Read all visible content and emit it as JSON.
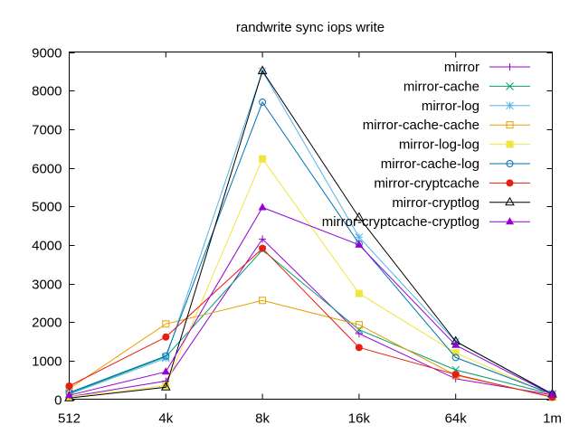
{
  "chart_data": {
    "type": "line",
    "title": "randwrite sync iops write",
    "xlabel": "",
    "ylabel": "",
    "categories": [
      "512",
      "4k",
      "8k",
      "16k",
      "64k",
      "1m"
    ],
    "ylim": [
      0,
      9000
    ],
    "yticks": [
      0,
      1000,
      2000,
      3000,
      4000,
      5000,
      6000,
      7000,
      8000,
      9000
    ],
    "grid": false,
    "legend_position": "top-right",
    "series": [
      {
        "name": "mirror",
        "color": "#9400d3",
        "marker": "plus",
        "values": [
          60,
          470,
          4150,
          1700,
          530,
          110
        ]
      },
      {
        "name": "mirror-cache",
        "color": "#009e73",
        "marker": "cross",
        "values": [
          150,
          1100,
          3870,
          1800,
          760,
          130
        ]
      },
      {
        "name": "mirror-log",
        "color": "#56b4e9",
        "marker": "star",
        "values": [
          130,
          1060,
          8500,
          4200,
          1490,
          140
        ]
      },
      {
        "name": "mirror-cache-cache",
        "color": "#e69f00",
        "marker": "square-open",
        "values": [
          270,
          1950,
          2560,
          1930,
          620,
          60
        ]
      },
      {
        "name": "mirror-log-log",
        "color": "#f0e442",
        "marker": "square-filled",
        "values": [
          60,
          350,
          6230,
          2740,
          1200,
          100
        ]
      },
      {
        "name": "mirror-cache-log",
        "color": "#0072b2",
        "marker": "circle-open",
        "values": [
          170,
          1120,
          7700,
          4030,
          1080,
          130
        ]
      },
      {
        "name": "mirror-cryptcache",
        "color": "#e51e10",
        "marker": "circle-filled",
        "values": [
          340,
          1610,
          3910,
          1340,
          640,
          50
        ]
      },
      {
        "name": "mirror-cryptlog",
        "color": "#000000",
        "marker": "triangle-open",
        "values": [
          30,
          310,
          8510,
          4710,
          1500,
          130
        ]
      },
      {
        "name": "mirror-cryptcache-cryptlog",
        "color": "#9400d3",
        "marker": "triangle-filled",
        "values": [
          100,
          710,
          4970,
          4000,
          1400,
          120
        ]
      }
    ]
  }
}
